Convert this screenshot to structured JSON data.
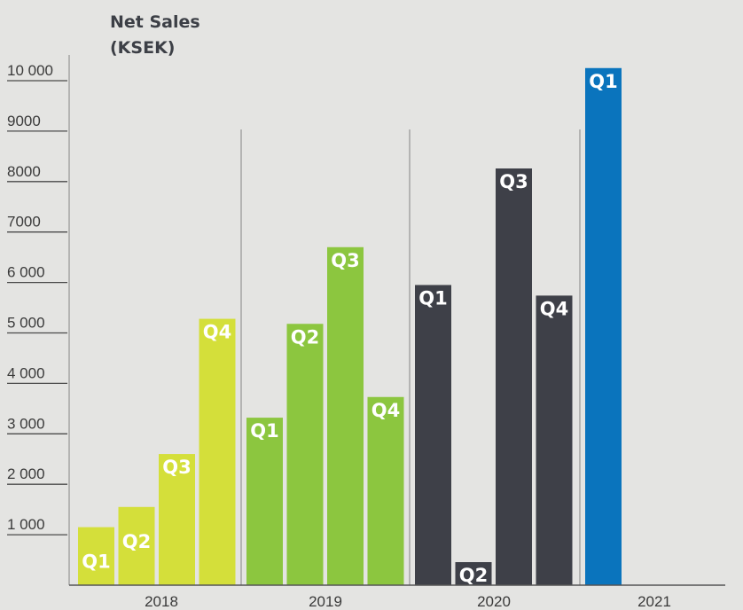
{
  "chart_data": {
    "type": "bar",
    "title": [
      "Net Sales",
      "(KSEK)"
    ],
    "ylim": [
      0,
      10250
    ],
    "y_ticks": [
      "1 000",
      "2 000",
      "3 000",
      "4 000",
      "5 000",
      "6 000",
      "7000",
      "8000",
      "9000",
      "10 000"
    ],
    "y_tick_values": [
      1000,
      2000,
      3000,
      4000,
      5000,
      6000,
      7000,
      8000,
      9000,
      10000
    ],
    "grid": "horizontal",
    "groups": [
      {
        "year": "2018",
        "color": "#d4df3a",
        "bars": [
          {
            "label": "Q1",
            "value": 1150
          },
          {
            "label": "Q2",
            "value": 1550
          },
          {
            "label": "Q3",
            "value": 2600
          },
          {
            "label": "Q4",
            "value": 5280
          }
        ]
      },
      {
        "year": "2019",
        "color": "#8cc63f",
        "bars": [
          {
            "label": "Q1",
            "value": 3320
          },
          {
            "label": "Q2",
            "value": 5180
          },
          {
            "label": "Q3",
            "value": 6700
          },
          {
            "label": "Q4",
            "value": 3730
          }
        ]
      },
      {
        "year": "2020",
        "color": "#3e4048",
        "bars": [
          {
            "label": "Q1",
            "value": 5950
          },
          {
            "label": "Q2",
            "value": 420
          },
          {
            "label": "Q3",
            "value": 8260
          },
          {
            "label": "Q4",
            "value": 5740
          }
        ]
      },
      {
        "year": "2021",
        "color": "#0a74bd",
        "bars": [
          {
            "label": "Q1",
            "value": 10250
          }
        ]
      }
    ]
  }
}
